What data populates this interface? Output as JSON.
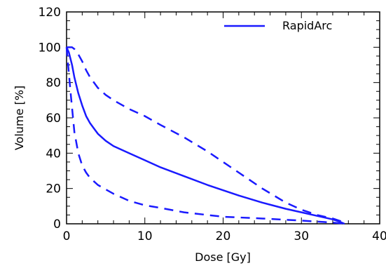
{
  "chart_data": {
    "type": "line",
    "title": "",
    "xlabel": "Dose [Gy]",
    "ylabel": "Volume [%]",
    "xlim": [
      0,
      40
    ],
    "ylim": [
      0,
      120
    ],
    "xticks": [
      0,
      10,
      20,
      30,
      40
    ],
    "yticks": [
      0,
      20,
      40,
      60,
      80,
      100,
      120
    ],
    "grid": false,
    "legend_position": "top-right",
    "legend": [
      {
        "label": "RapidArc",
        "style": "solid",
        "color": "#1a1aff"
      }
    ],
    "series": [
      {
        "name": "RapidArc",
        "style": "solid",
        "color": "#1a1aff",
        "x": [
          0,
          0.3,
          0.7,
          1.0,
          1.5,
          2.0,
          2.5,
          3.0,
          3.5,
          4.0,
          5.0,
          6.0,
          8.0,
          10.0,
          12.0,
          15.0,
          18.0,
          20.0,
          22.0,
          25.0,
          28.0,
          30.0,
          32.0,
          34.0,
          35.0,
          35.5
        ],
        "y": [
          100,
          97,
          90,
          83,
          74,
          67,
          61,
          57,
          54,
          51,
          47,
          44,
          40,
          36,
          32,
          27,
          22,
          19,
          16,
          12,
          8.5,
          6.5,
          4.5,
          2.5,
          1,
          0
        ]
      },
      {
        "name": "",
        "style": "dashed",
        "color": "#1a1aff",
        "x": [
          0,
          0.7,
          1.0,
          1.5,
          2.0,
          2.5,
          3.0,
          3.5,
          4.0,
          5.0,
          6.0,
          8.0,
          10.0,
          12.0,
          15.0,
          18.0,
          20.0,
          22.0,
          25.0,
          28.0,
          30.0,
          32.0,
          34.0,
          35.0,
          35.5
        ],
        "y": [
          100,
          100,
          99,
          96,
          92,
          87,
          83,
          80,
          77,
          73,
          70,
          65,
          61,
          56,
          49,
          41,
          35,
          29,
          20,
          12,
          8,
          5,
          3,
          1.5,
          0
        ]
      },
      {
        "name": "",
        "style": "dashed",
        "color": "#1a1aff",
        "x": [
          0,
          0.5,
          1.0,
          1.5,
          2.0,
          2.5,
          3.0,
          3.5,
          4.0,
          5.0,
          6.0,
          8.0,
          10.0,
          12.0,
          15.0,
          18.0,
          20.0,
          25.0,
          30.0,
          33.0,
          35.0,
          35.5
        ],
        "y": [
          100,
          75,
          52,
          40,
          33,
          29,
          26,
          24,
          22,
          19.5,
          17,
          13,
          10.5,
          9,
          6.5,
          5,
          4,
          3,
          1.8,
          1,
          0.3,
          0
        ]
      }
    ]
  }
}
